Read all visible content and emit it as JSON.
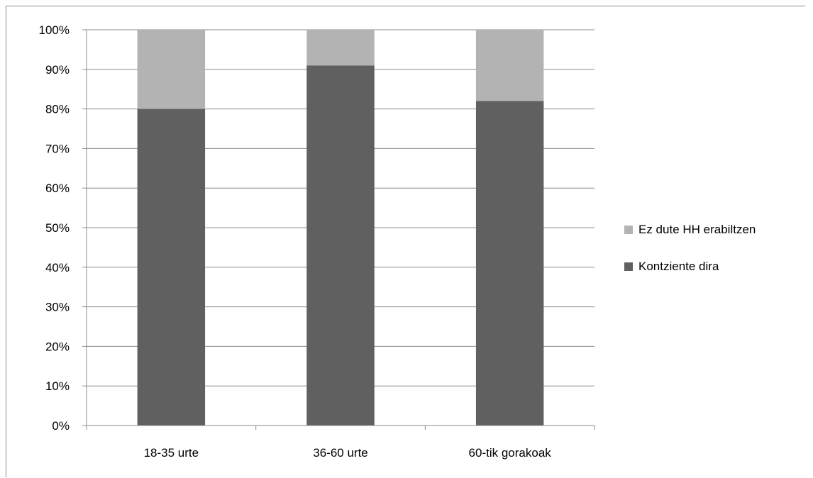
{
  "chart_data": {
    "type": "bar",
    "stacked": true,
    "categories": [
      "18-35 urte",
      "36-60 urte",
      "60-tik gorakoak"
    ],
    "series": [
      {
        "name": "Kontziente dira",
        "values": [
          80,
          91,
          82
        ],
        "color": "#606060"
      },
      {
        "name": "Ez dute HH erabiltzen",
        "values": [
          20,
          9,
          18
        ],
        "color": "#b3b3b3"
      }
    ],
    "y_ticks": [
      "0%",
      "10%",
      "20%",
      "30%",
      "40%",
      "50%",
      "60%",
      "70%",
      "80%",
      "90%",
      "100%"
    ],
    "ylim": [
      0,
      100
    ],
    "grid": true,
    "legend_position": "right",
    "legend_order": [
      1,
      0
    ],
    "axis_color": "#8c8c8c",
    "grid_color": "#8c8c8c"
  }
}
